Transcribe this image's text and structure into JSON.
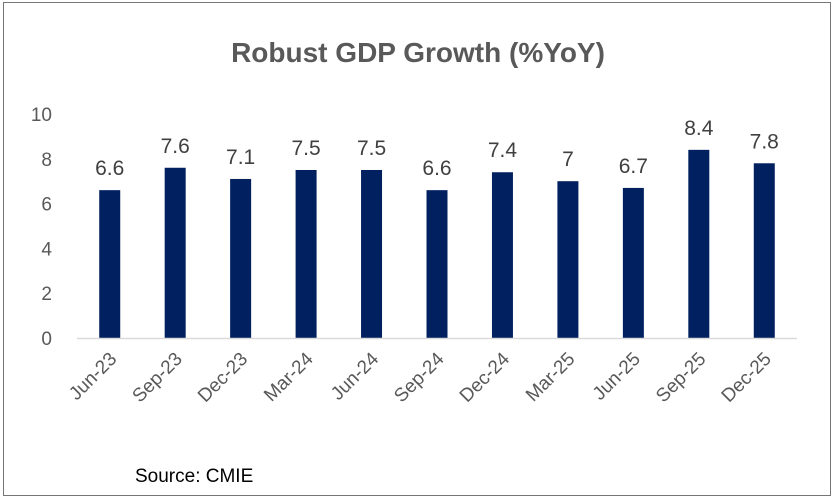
{
  "chart_data": {
    "type": "bar",
    "title": "Robust GDP Growth (%YoY)",
    "categories": [
      "Jun-23",
      "Sep-23",
      "Dec-23",
      "Mar-24",
      "Jun-24",
      "Sep-24",
      "Dec-24",
      "Mar-25",
      "Jun-25",
      "Sep-25",
      "Dec-25"
    ],
    "values": [
      6.6,
      7.6,
      7.1,
      7.5,
      7.5,
      6.6,
      7.4,
      7,
      6.7,
      8.4,
      7.8
    ],
    "data_labels": [
      "6.6",
      "7.6",
      "7.1",
      "7.5",
      "7.5",
      "6.6",
      "7.4",
      "7",
      "6.7",
      "8.4",
      "7.8"
    ],
    "xlabel": "",
    "ylabel": "",
    "ylim": [
      0,
      10
    ],
    "yticks": [
      "0",
      "2",
      "4",
      "6",
      "8",
      "10"
    ],
    "grid": false,
    "legend": "none",
    "bar_color": "#002060",
    "source": "Source: CMIE"
  }
}
